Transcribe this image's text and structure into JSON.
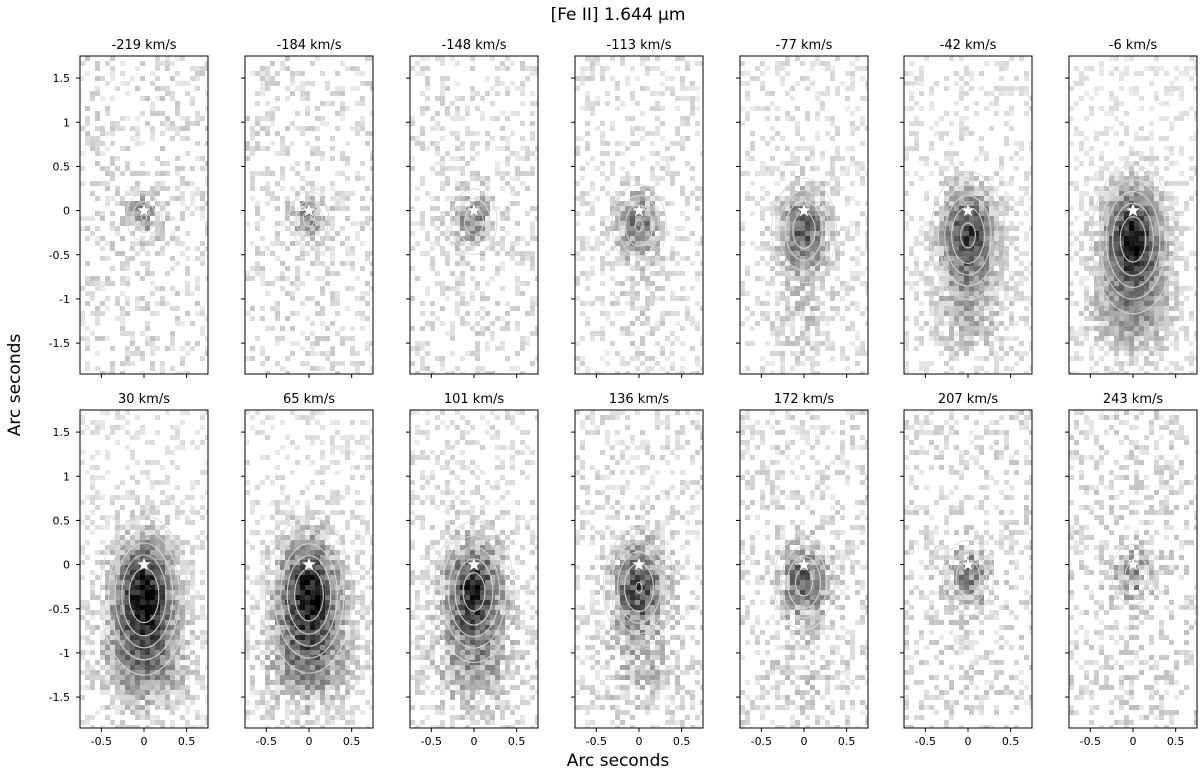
{
  "figure": {
    "title": "[Fe II] 1.644 µm",
    "xlabel": "Arc seconds",
    "ylabel": "Arc seconds"
  },
  "chart_data": {
    "type": "heatmap",
    "title": "[Fe II] 1.644 µm",
    "xlabel": "Arc seconds",
    "ylabel": "Arc seconds",
    "colormap": "greyscale (white = low, black = high) with white contours",
    "xlim": [
      -0.75,
      0.75
    ],
    "ylim": [
      -1.85,
      1.75
    ],
    "xticks": [
      -0.5,
      0,
      0.5
    ],
    "yticks": [
      -1.5,
      -1,
      -0.5,
      0,
      0.5,
      1,
      1.5
    ],
    "star_marker": {
      "x": 0,
      "y": 0
    },
    "layout": {
      "rows": 2,
      "cols": 7
    },
    "panels": [
      {
        "label": "-219 km/s",
        "velocity": -219
      },
      {
        "label": "-184 km/s",
        "velocity": -184
      },
      {
        "label": "-148 km/s",
        "velocity": -148
      },
      {
        "label": "-113 km/s",
        "velocity": -113
      },
      {
        "label": "-77 km/s",
        "velocity": -77
      },
      {
        "label": "-42 km/s",
        "velocity": -42
      },
      {
        "label": "-6 km/s",
        "velocity": -6
      },
      {
        "label": "30 km/s",
        "velocity": 30
      },
      {
        "label": "65 km/s",
        "velocity": 65
      },
      {
        "label": "101 km/s",
        "velocity": 101
      },
      {
        "label": "136 km/s",
        "velocity": 136
      },
      {
        "label": "172 km/s",
        "velocity": 172
      },
      {
        "label": "207 km/s",
        "velocity": 207
      },
      {
        "label": "243 km/s",
        "velocity": 243
      }
    ]
  }
}
